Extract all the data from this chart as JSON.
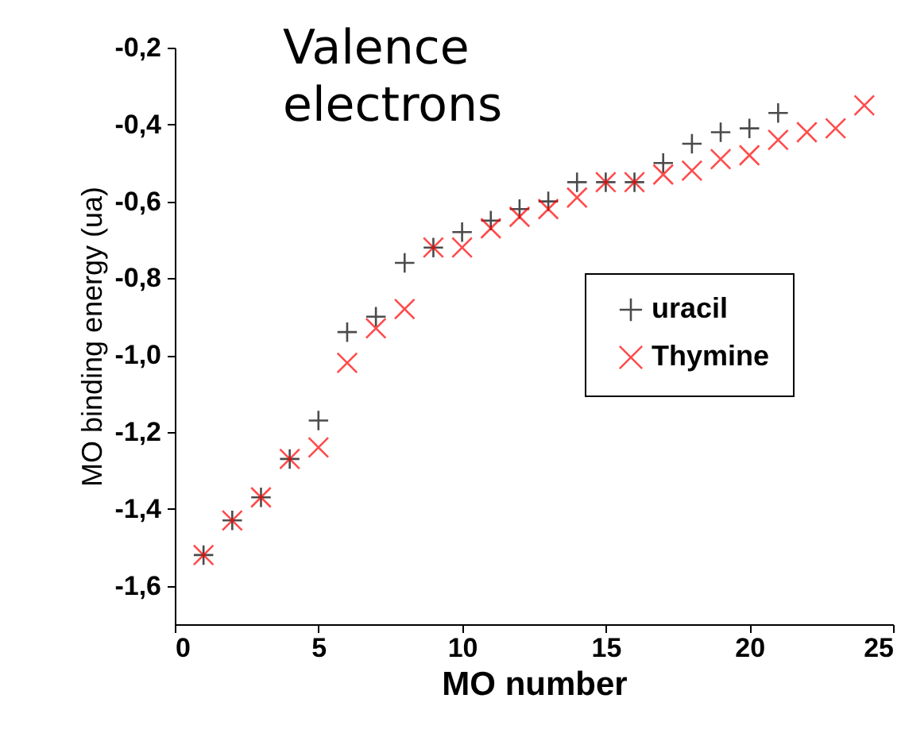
{
  "chart_data": {
    "type": "scatter",
    "title": "Valence electrons",
    "xlabel": "MO number",
    "ylabel": "MO binding energy (ua)",
    "xlim": [
      0,
      25
    ],
    "xticks": [
      0,
      5,
      10,
      15,
      20,
      25
    ],
    "ylim": [
      -1.7,
      -0.2
    ],
    "yticks": [
      {
        "value": -1.6,
        "label": "-1,6"
      },
      {
        "value": -1.4,
        "label": "-1,4"
      },
      {
        "value": -1.2,
        "label": "-1,2"
      },
      {
        "value": -1.0,
        "label": "-1,0"
      },
      {
        "value": -0.8,
        "label": "-0,8"
      },
      {
        "value": -0.6,
        "label": "-0,6"
      },
      {
        "value": -0.4,
        "label": "-0,4"
      },
      {
        "value": -0.2,
        "label": "-0,2"
      }
    ],
    "grid": false,
    "legend": "right",
    "series": [
      {
        "name": "uracil",
        "color": "#000000",
        "marker": "plus",
        "x": [
          1,
          2,
          3,
          4,
          5,
          6,
          7,
          8,
          9,
          10,
          11,
          12,
          13,
          14,
          15,
          16,
          17,
          18,
          19,
          20,
          21
        ],
        "values": [
          -1.52,
          -1.43,
          -1.37,
          -1.27,
          -1.17,
          -0.94,
          -0.9,
          -0.76,
          -0.72,
          -0.68,
          -0.65,
          -0.62,
          -0.6,
          -0.55,
          -0.55,
          -0.55,
          -0.5,
          -0.45,
          -0.42,
          -0.41,
          -0.37
        ]
      },
      {
        "name": "Thymine",
        "color": "#ff0000",
        "marker": "cross",
        "x": [
          1,
          2,
          3,
          4,
          5,
          6,
          7,
          8,
          9,
          10,
          11,
          12,
          13,
          14,
          15,
          16,
          17,
          18,
          19,
          20,
          21,
          22,
          23,
          24
        ],
        "values": [
          -1.52,
          -1.43,
          -1.37,
          -1.27,
          -1.24,
          -1.02,
          -0.93,
          -0.88,
          -0.72,
          -0.72,
          -0.67,
          -0.64,
          -0.62,
          -0.59,
          -0.55,
          -0.55,
          -0.53,
          -0.52,
          -0.49,
          -0.48,
          -0.44,
          -0.42,
          -0.41,
          -0.35
        ]
      }
    ]
  }
}
